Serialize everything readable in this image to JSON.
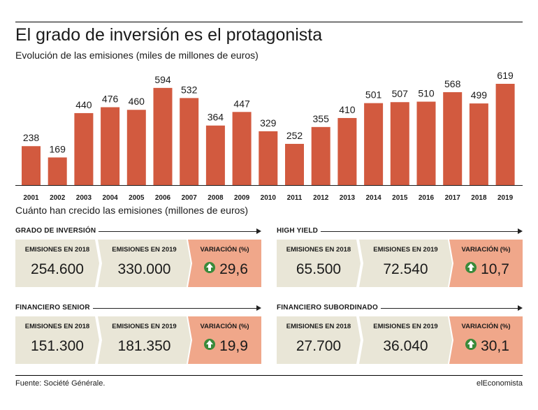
{
  "header": {
    "title": "El grado de inversión es el protagonista",
    "subtitle": "Evolución de las emisiones (miles de millones de euros)"
  },
  "colors": {
    "bar": "#d25a3f",
    "cell": "#e9e6d7",
    "highlight": "#f0a78a",
    "icon": "#3a8a3a"
  },
  "chart_data": {
    "type": "bar",
    "title": "Evolución de las emisiones (miles de millones de euros)",
    "categories": [
      "2001",
      "2002",
      "2003",
      "2004",
      "2005",
      "2006",
      "2007",
      "2008",
      "2009",
      "2010",
      "2011",
      "2012",
      "2013",
      "2014",
      "2015",
      "2016",
      "2017",
      "2018",
      "2019"
    ],
    "values": [
      238,
      169,
      440,
      476,
      460,
      594,
      532,
      364,
      447,
      329,
      252,
      355,
      410,
      501,
      507,
      510,
      568,
      499,
      619
    ],
    "xlabel": "",
    "ylabel": "",
    "ylim": [
      0,
      700
    ]
  },
  "section2": {
    "title": "Cuánto han crecido las emisiones (millones de euros)"
  },
  "panels": [
    {
      "name": "GRADO DE INVERSIÓN",
      "label_2018": "EMISIONES EN 2018",
      "value_2018": "254.600",
      "label_2019": "EMISIONES EN 2019",
      "value_2019": "330.000",
      "label_var": "VARIACIÓN (%)",
      "value_var": "29,6"
    },
    {
      "name": "HIGH YIELD",
      "label_2018": "EMISIONES EN 2018",
      "value_2018": "65.500",
      "label_2019": "EMISIONES EN 2019",
      "value_2019": "72.540",
      "label_var": "VARIACIÓN (%)",
      "value_var": "10,7"
    },
    {
      "name": "FINANCIERO SENIOR",
      "label_2018": "EMISIONES EN 2018",
      "value_2018": "151.300",
      "label_2019": "EMISIONES EN 2019",
      "value_2019": "181.350",
      "label_var": "VARIACIÓN (%)",
      "value_var": "19,9"
    },
    {
      "name": "FINANCIERO SUBORDINADO",
      "label_2018": "EMISIONES EN 2018",
      "value_2018": "27.700",
      "label_2019": "EMISIONES EN 2019",
      "value_2019": "36.040",
      "label_var": "VARIACIÓN (%)",
      "value_var": "30,1"
    }
  ],
  "footer": {
    "source": "Fuente: Société Générale.",
    "brand": "elEconomista"
  }
}
